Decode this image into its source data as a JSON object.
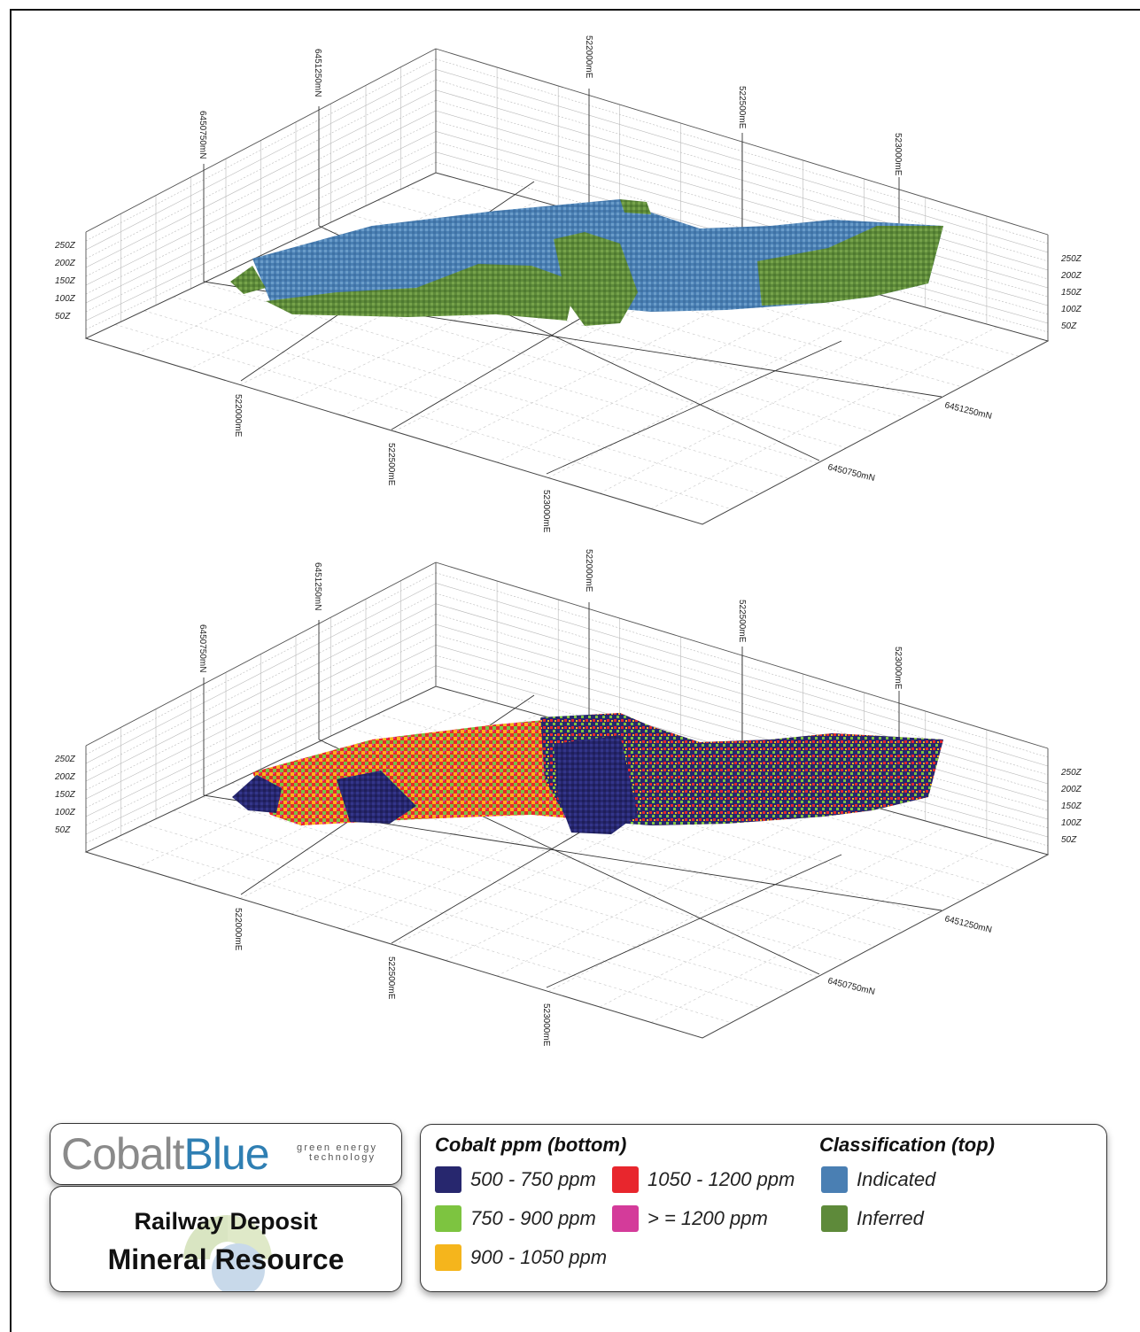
{
  "plot_top": {
    "grid_labels_n_top": [
      "6450750mN",
      "6451250mN"
    ],
    "grid_labels_e_top": [
      "522000mE",
      "522500mE",
      "523000mE"
    ],
    "grid_labels_e_bottom": [
      "522000mE",
      "522500mE",
      "523000mE"
    ],
    "grid_labels_n_right": [
      "6451250mN",
      "6450750mN"
    ],
    "z_labels": [
      "250Z",
      "200Z",
      "150Z",
      "100Z",
      "50Z"
    ]
  },
  "plot_bottom": {
    "grid_labels_n_top": [
      "6450750mN",
      "6451250mN"
    ],
    "grid_labels_e_top": [
      "522000mE",
      "522500mE",
      "523000mE"
    ],
    "grid_labels_e_bottom": [
      "522000mE",
      "522500mE",
      "523000mE"
    ],
    "grid_labels_n_right": [
      "6451250mN",
      "6450750mN"
    ],
    "z_labels": [
      "250Z",
      "200Z",
      "150Z",
      "100Z",
      "50Z"
    ]
  },
  "logo": {
    "part1": "Cobalt",
    "part2": "Blue",
    "tagline_1": "green energy",
    "tagline_2": "technology"
  },
  "title": {
    "line1": "Railway Deposit",
    "line2": "Mineral Resource"
  },
  "legend": {
    "cobalt_title": "Cobalt ppm (bottom)",
    "class_title": "Classification (top)",
    "cobalt_items": [
      {
        "label": "500 - 750 ppm",
        "color": "#27276e"
      },
      {
        "label": "750 - 900 ppm",
        "color": "#7dc440"
      },
      {
        "label": "900 - 1050 ppm",
        "color": "#f5b51c"
      },
      {
        "label": "1050 - 1200 ppm",
        "color": "#e8262d"
      },
      {
        "label": "> = 1200 ppm",
        "color": "#d43b9a"
      }
    ],
    "class_items": [
      {
        "label": "Indicated",
        "color": "#4a7fb3"
      },
      {
        "label": "Inferred",
        "color": "#5e8a3a"
      }
    ]
  }
}
